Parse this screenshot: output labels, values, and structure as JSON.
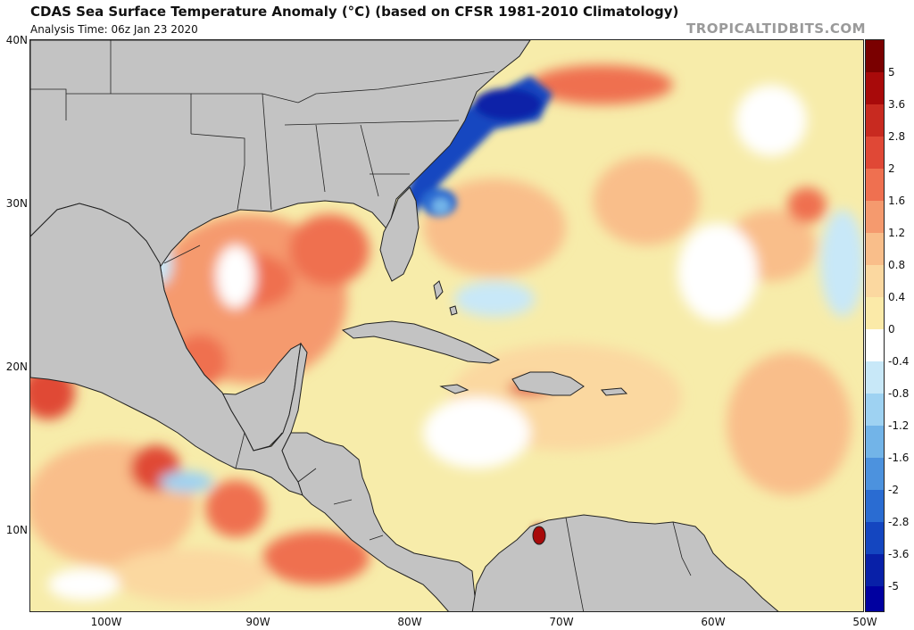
{
  "header": {
    "title": "CDAS Sea Surface Temperature Anomaly (°C) (based on CFSR 1981-2010 Climatology)",
    "analysis_time": "Analysis Time: 06z Jan 23 2020",
    "watermark": "TROPICALTIDBITS.COM"
  },
  "map": {
    "latitude_labels": [
      "40N",
      "30N",
      "20N",
      "10N"
    ],
    "longitude_labels": [
      "100W",
      "90W",
      "80W",
      "70W",
      "60W",
      "50W"
    ],
    "extent": {
      "lon_min": -105,
      "lon_max": -50,
      "lat_min": 5,
      "lat_max": 40
    }
  },
  "colorbar": {
    "labels": [
      "5",
      "3.6",
      "2.8",
      "2",
      "1.6",
      "1.2",
      "0.8",
      "0.4",
      "0",
      "-0.4",
      "-0.8",
      "-1.2",
      "-1.6",
      "-2",
      "-2.8",
      "-3.6",
      "-5"
    ],
    "colors": [
      "#7a0000",
      "#a80a0a",
      "#c82a20",
      "#e04836",
      "#ef7050",
      "#f59a6e",
      "#f9be8a",
      "#fbd8a0",
      "#fbeaa8",
      "#ffffff",
      "#c8e8f8",
      "#9ed2f2",
      "#72b4e8",
      "#4c92de",
      "#2a6cd2",
      "#1446c0",
      "#0820a8",
      "#0000a0"
    ]
  },
  "colors": {
    "land": "#c3c3c3",
    "border": "#222222"
  }
}
